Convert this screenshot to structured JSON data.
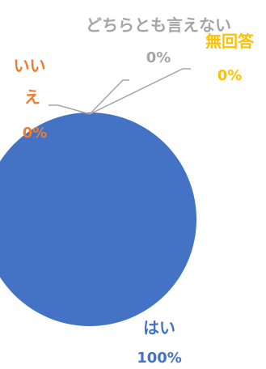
{
  "chart_data": {
    "type": "pie",
    "categories": [
      "はい",
      "いいえ",
      "どちらとも言えない",
      "無回答"
    ],
    "values": [
      100,
      0,
      0,
      0
    ],
    "data_labels": [
      "100%",
      "0%",
      "0%",
      "0%"
    ],
    "colors": [
      "#4472C4",
      "#ED7D31",
      "#A5A5A5",
      "#FFC000"
    ],
    "leader_line_color": "#A5A5A5",
    "title": "",
    "legend": "none"
  }
}
